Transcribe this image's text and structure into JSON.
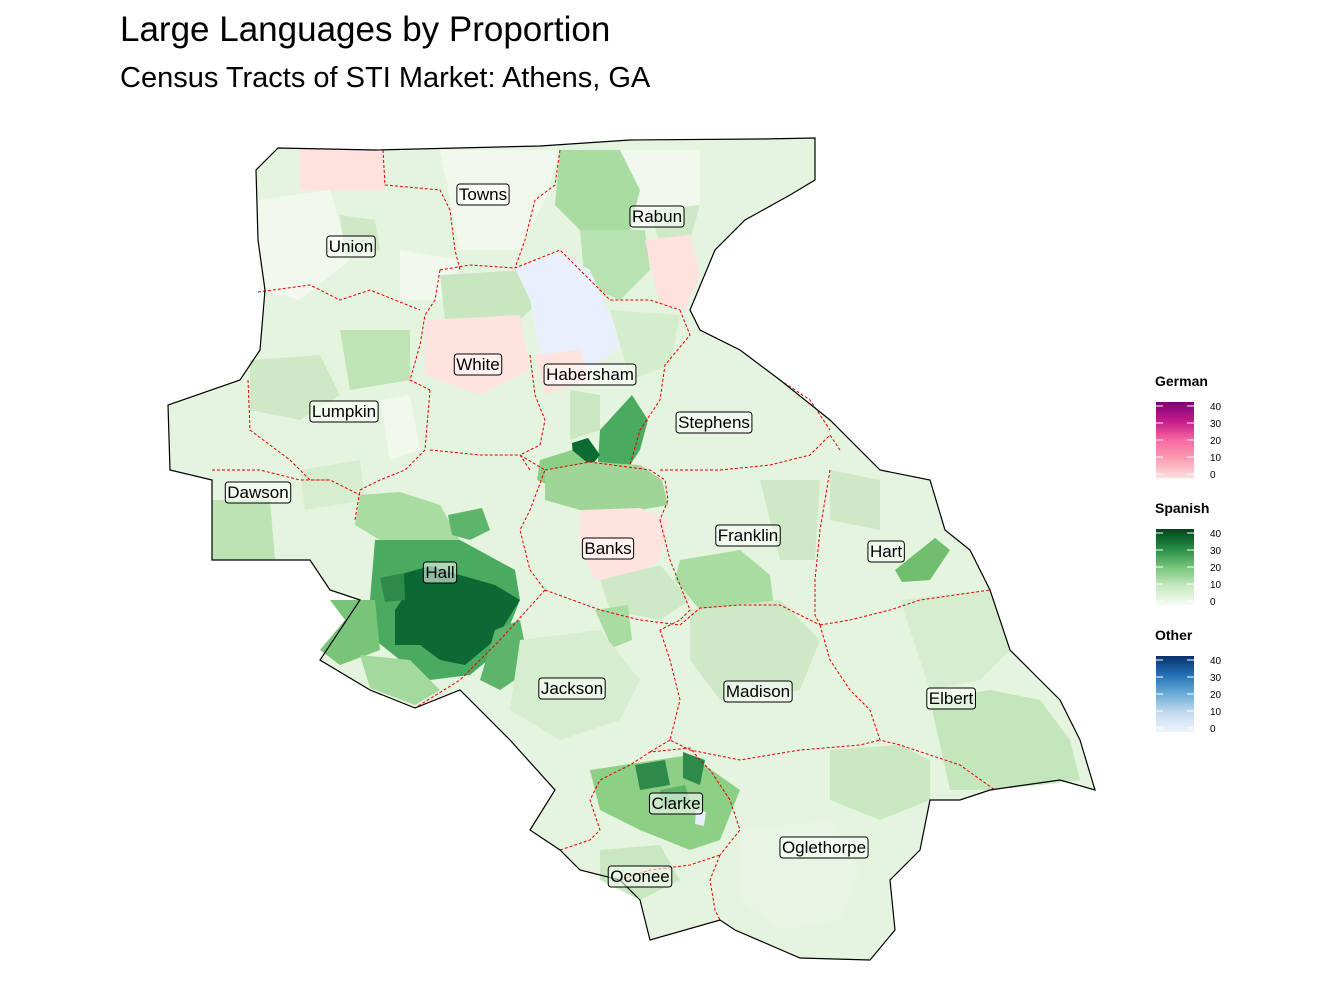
{
  "title": "Large Languages by Proportion",
  "subtitle": "Census Tracts of STI Market: Athens, GA",
  "counties": [
    {
      "name": "Towns",
      "id": "towns"
    },
    {
      "name": "Rabun",
      "id": "rabun"
    },
    {
      "name": "Union",
      "id": "union"
    },
    {
      "name": "White",
      "id": "white"
    },
    {
      "name": "Habersham",
      "id": "habersham"
    },
    {
      "name": "Lumpkin",
      "id": "lumpkin"
    },
    {
      "name": "Stephens",
      "id": "stephens"
    },
    {
      "name": "Dawson",
      "id": "dawson"
    },
    {
      "name": "Franklin",
      "id": "franklin"
    },
    {
      "name": "Banks",
      "id": "banks"
    },
    {
      "name": "Hart",
      "id": "hart"
    },
    {
      "name": "Hall",
      "id": "hall"
    },
    {
      "name": "Jackson",
      "id": "jackson"
    },
    {
      "name": "Madison",
      "id": "madison"
    },
    {
      "name": "Elbert",
      "id": "elbert"
    },
    {
      "name": "Clarke",
      "id": "clarke"
    },
    {
      "name": "Oglethorpe",
      "id": "oglethorpe"
    },
    {
      "name": "Oconee",
      "id": "oconee"
    }
  ],
  "legends": [
    {
      "id": "german",
      "title": "German",
      "ticks": [
        "40",
        "30",
        "20",
        "10",
        "0"
      ],
      "colors": [
        "#fde0dd",
        "#fa9fb5",
        "#f768a1",
        "#c51b8a",
        "#7a0177"
      ]
    },
    {
      "id": "spanish",
      "title": "Spanish",
      "ticks": [
        "40",
        "30",
        "20",
        "10",
        "0"
      ],
      "colors": [
        "#f7fcf5",
        "#c7e9c0",
        "#74c476",
        "#238b45",
        "#00441b"
      ]
    },
    {
      "id": "other",
      "title": "Other",
      "ticks": [
        "40",
        "30",
        "20",
        "10",
        "0"
      ],
      "colors": [
        "#eff3ff",
        "#c6dbef",
        "#6baed6",
        "#2171b5",
        "#08306b"
      ]
    }
  ]
}
